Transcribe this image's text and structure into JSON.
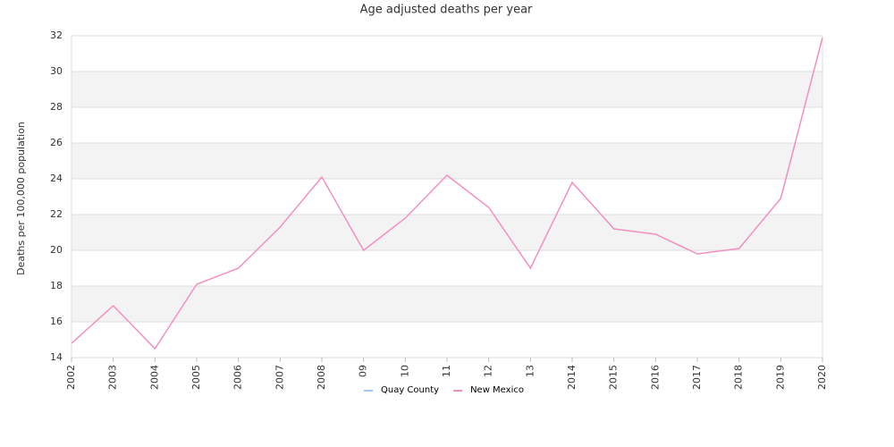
{
  "chart_data": {
    "type": "line",
    "title": "Age adjusted deaths per year",
    "y_label": "Deaths per 100,000 population",
    "categories": [
      "2002",
      "2003",
      "2004",
      "2005",
      "2006",
      "2007",
      "2008",
      "09",
      "10",
      "11",
      "12",
      "13",
      "2014",
      "2015",
      "2016",
      "2017",
      "2018",
      "2019",
      "2020"
    ],
    "series": [
      {
        "name": "Quay County",
        "color": "#9ec8ee",
        "values": [
          null,
          null,
          null,
          null,
          null,
          null,
          null,
          null,
          null,
          null,
          null,
          null,
          null,
          null,
          null,
          null,
          null,
          null,
          null
        ]
      },
      {
        "name": "New Mexico",
        "color": "#f28fc2",
        "values": [
          14.8,
          16.9,
          14.5,
          18.1,
          19.0,
          21.3,
          24.1,
          20.0,
          21.8,
          24.2,
          22.4,
          19.0,
          23.8,
          21.2,
          20.9,
          19.8,
          20.1,
          22.9,
          31.9
        ]
      }
    ],
    "ylim": [
      14,
      32
    ],
    "yticks": [
      14,
      16,
      18,
      20,
      22,
      24,
      26,
      28,
      30,
      32
    ],
    "grid": true,
    "legend": "bottom"
  }
}
